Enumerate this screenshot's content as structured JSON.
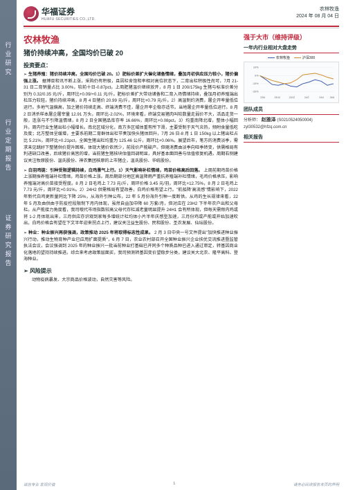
{
  "brand": {
    "zh": "华福证券",
    "en": "HUAFU SECURITIES CO.,LTD."
  },
  "sector": "农林牧渔",
  "date": "2024 年 08 月 04 日",
  "sidebar": [
    "行业研究",
    "行业定期报告",
    "证券研究报告"
  ],
  "title1": "农林牧渔",
  "title2": "猪价持续冲高，全国均价已破 20",
  "section_invest": "投资要点：",
  "rating": "强于大市（维持评级）",
  "chart_head": "一年内行业相对大盘走势",
  "legend": {
    "a": "农林牧渔",
    "b": "沪深300"
  },
  "chart": {
    "type": "line",
    "xlim": [
      0,
      12
    ],
    "ylim": [
      -0.2,
      0.1
    ],
    "yticks": [
      "10%",
      "0%",
      "-10%",
      "-20%"
    ],
    "xticks": [
      "23/8",
      "23/10",
      "23/12",
      "24/2",
      "24/4",
      "24/6"
    ],
    "series": [
      {
        "name": "农林牧渔",
        "color": "#3a5aad",
        "pts": [
          0.0,
          -0.05,
          -0.11,
          -0.12,
          -0.1,
          -0.13,
          -0.14,
          -0.1,
          -0.08,
          -0.05,
          -0.07,
          -0.12,
          -0.1
        ]
      },
      {
        "name": "沪深300",
        "color": "#d08a2a",
        "pts": [
          0.0,
          -0.03,
          -0.06,
          -0.08,
          -0.1,
          -0.09,
          -0.05,
          0.01,
          0.02,
          0.03,
          0.01,
          -0.02,
          -0.04
        ]
      }
    ],
    "grid_color": "#e7e7e7",
    "bg": "#ffffff"
  },
  "team_head": "团队成员",
  "team": {
    "role": "分析师：",
    "name": "赵雅泽",
    "cert": "(S0210524050004)",
    "email": "zyl30532@hfzq.com.cn"
  },
  "related_head": "相关报告",
  "bullets": [
    {
      "lead": "生猪养殖：猪价持续冲高，全国均价已破 20。1）肥标价差扩大催化诸备情绪，叠加月初供应压力较小，猪价偏强上涨。",
      "body": "据博亚和讯不断上涨，采购仍有积极，且因栏舍饱和率相对高位状态下，二育出栏积极性尚可，7月 21-31 日二育销量占比 3.00%，较前十日-0.87pct。上周肥猪温价继续放开，8 月 1 日 200/175kg 生猪与标准价差分别为 0.32/0.35 元/斤，周环比+0.09/+0.11 元/斤。肥标价差扩大带动诸备和二育入场情绪持续，叠加月初养殖端出栏压力较轻，猪价持续冲高，8 月 4 日猪价 20.99 元/斤，周环比+0.79 元/斤。2）高温制约消费，屠企开率量低位运行。多地气温偏高，加之猪价持续走高、终端消费不佳，屠企开率企稳亦适节。当地屠企开率量低位运行。8 月 2 日消杀样本屠企屠宰量 12.91 万头，周环比-2.02%，环境来看，终端交易猪肉叫较数量走弱价不大，活品走货一般，连涨与不引降温情绪，8 月 2 日全国猪品库存率 16.66%，周环比+0.08pct。3）均重南降北增，整体小幅回升。周内行业生猪出栏小幅增长。南北区域分化，南方多区域体重有所下滑，主要受制于天气炎热，频附食量低吃及度；北方整体呈缓增，主要系前期二育群体出栏节奏加快头猪体回升，7月 26 日-8 月 1 日 150kg 以上猪出栏占比 5.21%，周环比+0.21pct，全国生猪出栏均重为 125.46 公斤，周环比+0.06%。展望后市，笔方的消费淡季，需求未见跳好下整猪供价提升困难，体现大猪价依然少，前段价产能破产。但随消费由淡季向旺季转变，供需格局有利进缺口改善，后续猪价高皆的增，当前猪生猪核块估值回调明显，具好基本面回善与估值修复机遇，周期右侧建议关注牧原股份、温氏股份、神农集团核原的上市猪企，温氏股份、华统股份。"
    },
    {
      "lead": "白羽鸡链：引种受限逻辑持续，白鸡景气上行。1）天气影响补栏情绪，鸡苗价格高后回落。",
      "body": "上周前期鸡苗价格上涨期振养殖端补栏情绪，鸡苗价格上涨。周后期部分地区高温降雨严重抗养殖端补栏情绪，毛鸡价格承压，影响养殖端对高价苗接受程度。8 月 2 日毛鸡上 7.73 元/斤，周环价格 3.45 元/羽，周环比+12.75%，8 月 2 日毛鸡上 7.73 元/斤，周环比+0.91%。2）24H2 供需格局有望改善，白鸡价格有望上行。\"航船降'高流感\"情影响下，2022 年新代白鸡更新量同比下降 25%，从海外引种公布，22 年 5 月份海外引种一度断供。从鸡的生长规律来看，22 年 5 月及由供由于防疫控段限制下月内体现，虽然自益加中降 60 万套/月，但对应在 23H2 下半年农户出和父母栏。从产能接力角度看，我司哦代市场指数较高父母代存栏减老量明显提升 24H1 会有所体现，但每天需频内鸡或将 1-2 月体现出来，三月供应亦识观到家每多增统计栏均体小片半年庆感型加速，三月份鸡或产能或开始加速吹出，白鸡价格会有望在下文半年迎来拐点上行，建议关注益生股份、民和股份、圣农发展、仙坛股份。"
    },
    {
      "lead": "种业：种业振兴再获强调，政策推动 2025 年将取得标志性成果。",
      "body": "2 月 3 日中央一号文件提出\"加快推进种业振兴行动，推动生物育种产业已应用扩面提质\"，6 月 7 日，农业农村部召开全国种业振兴企业扶优交流推进暨监管执法会议，会议强调到 2025 年的种业振兴一批当前种业打基础已开同多个种质品种已进入通过审定，转基因商业化落地的望持持续推进。综合来考虑政策层面买，我司预测转基因变价望稳步分类，建议关大北农、隆平高科、登海种业。"
    }
  ],
  "risk_head": "风险提示",
  "risk_body": "动物疫病暴发、大宗商品价格波动，自然灾害等风险。",
  "footer": {
    "left": "诚信专业  发现价值",
    "page": "1",
    "right": "请务必阅读报告末页的声明"
  },
  "colors": {
    "accent": "#c0283c",
    "text": "#222222",
    "side": "#6a7a8a"
  }
}
